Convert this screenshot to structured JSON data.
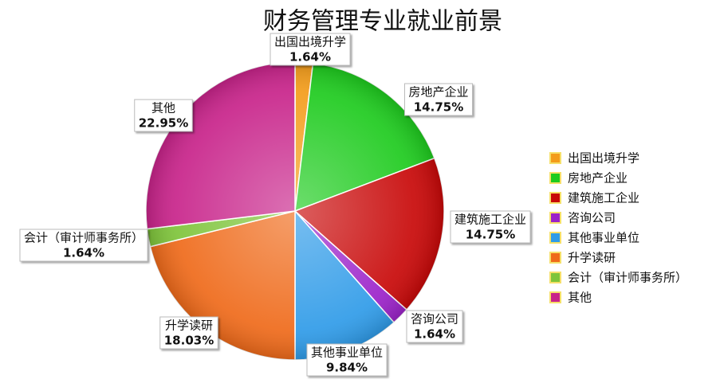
{
  "chart_data": {
    "type": "pie",
    "title": "财务管理专业就业前景",
    "categories": [
      "出国出境升学",
      "房地产企业",
      "建筑施工企业",
      "咨询公司",
      "其他事业单位",
      "升学读研",
      "会计（审计师事务所）",
      "其他"
    ],
    "values": [
      1.64,
      14.75,
      14.75,
      1.64,
      9.84,
      18.03,
      1.64,
      22.95
    ],
    "value_labels": [
      "1.64%",
      "14.75%",
      "14.75%",
      "1.64%",
      "9.84%",
      "18.03%",
      "1.64%",
      "22.95%"
    ],
    "colors": [
      "#f39c1a",
      "#1ecb1e",
      "#c80808",
      "#9b22c9",
      "#2f9be8",
      "#ef6a1a",
      "#7ec43a",
      "#c8238a"
    ],
    "legend": "right"
  }
}
